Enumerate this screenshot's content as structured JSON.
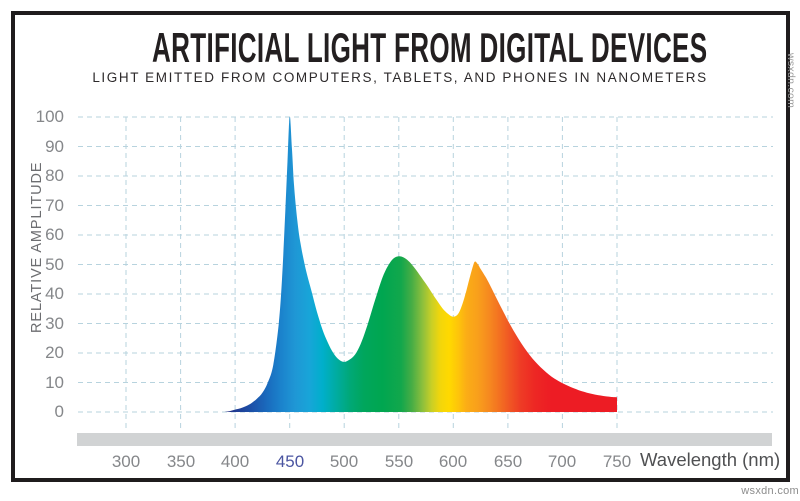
{
  "page": {
    "background": "#ffffff",
    "frame_border_color": "#1f1c1d"
  },
  "watermarks": {
    "right_side": "wsxdn.com",
    "bottom_right": "wsxdn.com"
  },
  "chart_data": {
    "type": "area",
    "title": "ARTIFICIAL LIGHT FROM DIGITAL DEVICES",
    "subtitle": "LIGHT EMITTED FROM COMPUTERS, TABLETS, AND PHONES IN NANOMETERS",
    "xlabel": "Wavelength (nm)",
    "ylabel": "RELATIVE AMPLITUDE",
    "xlim": [
      300,
      750
    ],
    "ylim": [
      0,
      100
    ],
    "x_ticks": [
      300,
      350,
      400,
      450,
      500,
      550,
      600,
      650,
      700,
      750
    ],
    "y_ticks": [
      0,
      10,
      20,
      30,
      40,
      50,
      60,
      70,
      80,
      90,
      100
    ],
    "grid": true,
    "grid_color": "#b7d3de",
    "tick_label_color": "#85878a",
    "highlight_x_tick": {
      "value": 450,
      "color": "#4b55a1"
    },
    "axis_strip_color": "#d1d3d4",
    "legend": "none",
    "series": [
      {
        "name": "light-emission-spectrum",
        "points": [
          [
            390,
            0
          ],
          [
            395,
            0.3
          ],
          [
            400,
            0.8
          ],
          [
            405,
            1.3
          ],
          [
            410,
            2
          ],
          [
            415,
            3
          ],
          [
            420,
            4.5
          ],
          [
            425,
            6.5
          ],
          [
            430,
            10
          ],
          [
            435,
            16
          ],
          [
            440,
            30
          ],
          [
            443,
            45
          ],
          [
            446,
            68
          ],
          [
            448,
            85
          ],
          [
            450,
            100
          ],
          [
            452,
            90
          ],
          [
            454,
            77
          ],
          [
            457,
            65
          ],
          [
            460,
            57
          ],
          [
            465,
            48
          ],
          [
            470,
            41
          ],
          [
            475,
            34
          ],
          [
            480,
            28
          ],
          [
            485,
            23.5
          ],
          [
            490,
            20
          ],
          [
            495,
            17.8
          ],
          [
            500,
            17
          ],
          [
            505,
            17.8
          ],
          [
            510,
            19.5
          ],
          [
            515,
            23
          ],
          [
            520,
            28
          ],
          [
            525,
            34
          ],
          [
            530,
            40
          ],
          [
            535,
            45.5
          ],
          [
            540,
            49.5
          ],
          [
            545,
            52
          ],
          [
            550,
            52.8
          ],
          [
            555,
            52.3
          ],
          [
            560,
            50.8
          ],
          [
            565,
            48.6
          ],
          [
            570,
            46
          ],
          [
            575,
            43.4
          ],
          [
            580,
            40.6
          ],
          [
            585,
            37.8
          ],
          [
            590,
            35.2
          ],
          [
            595,
            33.3
          ],
          [
            600,
            32.3
          ],
          [
            605,
            33.6
          ],
          [
            610,
            38.5
          ],
          [
            615,
            45.5
          ],
          [
            618,
            49.5
          ],
          [
            620,
            51
          ],
          [
            623,
            49.8
          ],
          [
            625,
            48.5
          ],
          [
            630,
            45.5
          ],
          [
            635,
            42
          ],
          [
            640,
            38.2
          ],
          [
            645,
            34.6
          ],
          [
            650,
            31
          ],
          [
            655,
            27.7
          ],
          [
            660,
            24.6
          ],
          [
            665,
            21.8
          ],
          [
            670,
            19.3
          ],
          [
            675,
            17.1
          ],
          [
            680,
            15.2
          ],
          [
            685,
            13.5
          ],
          [
            690,
            12
          ],
          [
            695,
            10.8
          ],
          [
            700,
            9.8
          ],
          [
            705,
            8.9
          ],
          [
            710,
            8.1
          ],
          [
            715,
            7.4
          ],
          [
            720,
            6.8
          ],
          [
            725,
            6.3
          ],
          [
            730,
            5.9
          ],
          [
            735,
            5.6
          ],
          [
            740,
            5.3
          ],
          [
            745,
            5.1
          ],
          [
            750,
            5
          ]
        ]
      }
    ],
    "spectrum_gradient": [
      [
        390,
        "#252d7d"
      ],
      [
        400,
        "#203a92"
      ],
      [
        415,
        "#1c50a8"
      ],
      [
        430,
        "#1a6cbe"
      ],
      [
        443,
        "#1b84cd"
      ],
      [
        455,
        "#1f97d5"
      ],
      [
        468,
        "#18a5d8"
      ],
      [
        480,
        "#00afcb"
      ],
      [
        492,
        "#00aca3"
      ],
      [
        505,
        "#00a878"
      ],
      [
        518,
        "#00a65c"
      ],
      [
        535,
        "#00a650"
      ],
      [
        552,
        "#12a74c"
      ],
      [
        562,
        "#47ad45"
      ],
      [
        572,
        "#8ec03c"
      ],
      [
        580,
        "#c8cf26"
      ],
      [
        588,
        "#f2d60b"
      ],
      [
        596,
        "#ffd900"
      ],
      [
        604,
        "#fec60a"
      ],
      [
        612,
        "#fbad16"
      ],
      [
        622,
        "#f9a01b"
      ],
      [
        632,
        "#f68b1f"
      ],
      [
        642,
        "#f37121"
      ],
      [
        652,
        "#f05524"
      ],
      [
        662,
        "#ee3b25"
      ],
      [
        675,
        "#ed2724"
      ],
      [
        690,
        "#ed1c24"
      ],
      [
        750,
        "#ed1c24"
      ]
    ]
  }
}
